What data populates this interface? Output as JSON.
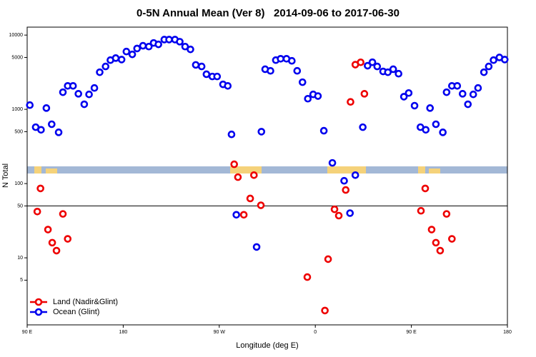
{
  "chart_data": {
    "type": "scatter",
    "title": "0-5N Annual Mean (Ver 8)   2014-09-06 to 2017-06-30",
    "xlabel": "Longitude (deg E)",
    "ylabel": "N Total",
    "xlim": [
      90,
      540
    ],
    "xticks": [
      {
        "value": 90,
        "label": "90 E"
      },
      180,
      {
        "value": 270,
        "label": "90 W"
      },
      {
        "value": 360,
        "label": "0"
      },
      {
        "value": 450,
        "label": "90 E"
      },
      {
        "value": 540,
        "label": "180"
      }
    ],
    "ylim": [
      1.25,
      12800
    ],
    "log_y": true,
    "yticks": [
      5,
      10,
      50,
      100,
      500,
      1000,
      5000,
      10000
    ],
    "reference_line": 50,
    "legend": "bottom-left",
    "series": [
      {
        "name": "Land (Nadir&Glint)",
        "color": "#ee0000",
        "x": [
          99.5,
          102.5,
          109.5,
          113.5,
          117.5,
          123.5,
          128,
          284,
          287.5,
          293,
          299,
          302.5,
          309,
          352.5,
          369,
          372,
          378,
          382,
          388.5,
          393,
          397.5,
          402.5,
          406,
          459,
          463,
          469,
          473,
          477,
          483,
          488
        ],
        "values": [
          42,
          86,
          24,
          16,
          12.5,
          39,
          18,
          182,
          122,
          38,
          63,
          130,
          51,
          5.5,
          1.95,
          9.6,
          45,
          37,
          82,
          1260,
          4000,
          4300,
          1620,
          43,
          86,
          24,
          16,
          12.5,
          39,
          18
        ]
      },
      {
        "name": "Ocean (Glint)",
        "color": "#0000ee",
        "x": [
          92.5,
          98,
          103,
          108,
          113,
          119.5,
          123.5,
          128,
          133,
          138,
          143.5,
          148,
          153,
          158,
          163.5,
          168,
          173,
          178.5,
          183,
          188.5,
          193,
          198.5,
          204,
          208.5,
          213,
          218.5,
          223,
          228.5,
          233,
          238,
          243,
          248,
          253.5,
          258,
          263.5,
          268,
          273.5,
          278,
          281.5,
          286,
          305,
          309.5,
          313,
          318,
          323,
          327.5,
          333,
          338,
          343,
          348,
          353,
          358,
          362.5,
          368,
          376,
          387,
          392.5,
          397.5,
          404.5,
          409,
          413.5,
          418,
          423.5,
          428,
          433,
          438,
          443,
          447.5,
          453,
          458.5,
          463.5,
          467.5,
          473,
          479.5,
          483,
          488,
          493,
          498,
          503,
          508,
          512.5,
          518,
          522.5,
          527,
          532.5,
          537.5
        ],
        "values": [
          1140,
          575,
          530,
          1040,
          630,
          490,
          1700,
          2070,
          2070,
          1620,
          1170,
          1590,
          1940,
          3160,
          3780,
          4600,
          4900,
          4680,
          6000,
          5500,
          6600,
          7180,
          7000,
          7840,
          7500,
          8700,
          8700,
          8700,
          8150,
          7000,
          6420,
          3970,
          3780,
          2970,
          2770,
          2770,
          2170,
          2070,
          460,
          38,
          14,
          500,
          3470,
          3300,
          4600,
          4800,
          4800,
          4500,
          3300,
          2320,
          1390,
          1590,
          1510,
          515,
          190,
          109,
          40,
          130,
          575,
          3870,
          4310,
          3780,
          3240,
          3160,
          3470,
          3020,
          1480,
          1660,
          1120,
          575,
          530,
          1040,
          630,
          490,
          1700,
          2070,
          2070,
          1620,
          1170,
          1590,
          1940,
          3160,
          3780,
          4600,
          5000,
          4680
        ]
      }
    ]
  }
}
